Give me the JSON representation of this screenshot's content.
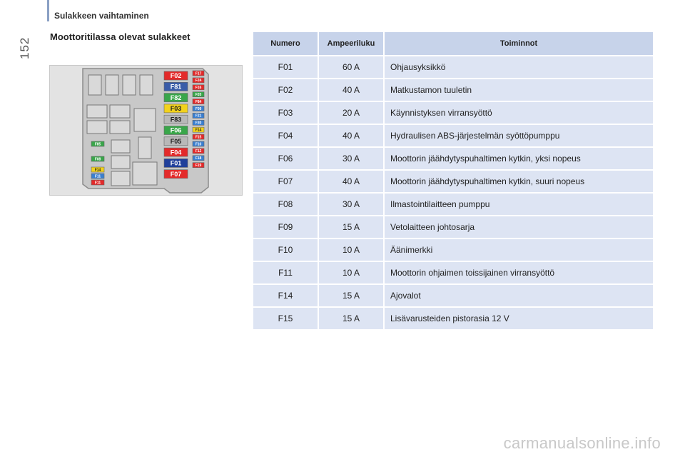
{
  "header": {
    "section": "Sulakkeen vaihtaminen",
    "page_number": "152"
  },
  "title": "Moottoritilassa olevat sulakkeet",
  "diagram": {
    "big_labels": [
      {
        "text": "F02",
        "color": "#e32a2a"
      },
      {
        "text": "F81",
        "color": "#3a5ca8"
      },
      {
        "text": "F82",
        "color": "#39a64a"
      },
      {
        "text": "F03",
        "color": "#f2d21c"
      },
      {
        "text": "F83",
        "color": "#b8b8b8"
      },
      {
        "text": "F06",
        "color": "#39a64a"
      },
      {
        "text": "F05",
        "color": "#b8b8b8"
      },
      {
        "text": "F04",
        "color": "#e32a2a"
      },
      {
        "text": "F01",
        "color": "#1f3f9a"
      },
      {
        "text": "F07",
        "color": "#e32a2a"
      }
    ],
    "small_right": [
      {
        "text": "F17",
        "color": "#e32a2a"
      },
      {
        "text": "F24",
        "color": "#e32a2a"
      },
      {
        "text": "F16",
        "color": "#e32a2a"
      },
      {
        "text": "F20",
        "color": "#39a64a"
      },
      {
        "text": "F84",
        "color": "#e32a2a"
      },
      {
        "text": "F09",
        "color": "#3a7fd0"
      },
      {
        "text": "F21",
        "color": "#3a7fd0"
      },
      {
        "text": "F30",
        "color": "#3a7fd0"
      },
      {
        "text": "F14",
        "color": "#f2d21c"
      },
      {
        "text": "F15",
        "color": "#e32a2a"
      },
      {
        "text": "F10",
        "color": "#3a7fd0"
      },
      {
        "text": "F12",
        "color": "#e32a2a"
      },
      {
        "text": "F18",
        "color": "#3a7fd0"
      },
      {
        "text": "F19",
        "color": "#e32a2a"
      }
    ],
    "small_left": [
      {
        "text": "F85",
        "color": "#39a64a"
      },
      {
        "text": "F08",
        "color": "#39a64a"
      },
      {
        "text": "F14",
        "color": "#f2d21c"
      },
      {
        "text": "F11",
        "color": "#3a7fd0"
      },
      {
        "text": "F11",
        "color": "#e32a2a"
      }
    ]
  },
  "table": {
    "headers": [
      "Numero",
      "Ampeeriluku",
      "Toiminnot"
    ],
    "rows": [
      [
        "F01",
        "60 A",
        "Ohjausyksikkö"
      ],
      [
        "F02",
        "40 A",
        "Matkustamon tuuletin"
      ],
      [
        "F03",
        "20 A",
        "Käynnistyksen virransyöttö"
      ],
      [
        "F04",
        "40 A",
        "Hydraulisen ABS-järjestelmän syöttöpumppu"
      ],
      [
        "F06",
        "30 A",
        "Moottorin jäähdytyspuhaltimen kytkin, yksi nopeus"
      ],
      [
        "F07",
        "40 A",
        "Moottorin jäähdytyspuhaltimen kytkin, suuri nopeus"
      ],
      [
        "F08",
        "30 A",
        "Ilmastointilaitteen pumppu"
      ],
      [
        "F09",
        "15 A",
        "Vetolaitteen johtosarja"
      ],
      [
        "F10",
        "10 A",
        "Äänimerkki"
      ],
      [
        "F11",
        "10 A",
        "Moottorin ohjaimen toissijainen virransyöttö"
      ],
      [
        "F14",
        "15 A",
        "Ajovalot"
      ],
      [
        "F15",
        "15 A",
        "Lisävarusteiden pistorasia 12 V"
      ]
    ]
  },
  "watermark": "carmanualsonline.info"
}
